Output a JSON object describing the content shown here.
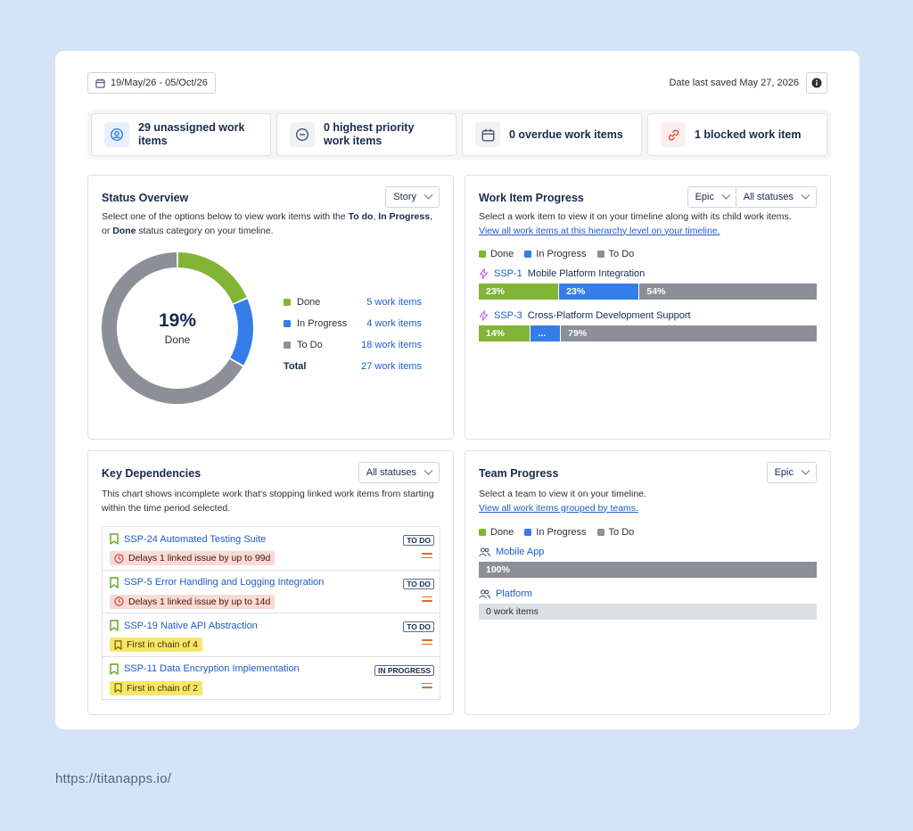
{
  "header": {
    "date_range": "19/May/26 - 05/Oct/26",
    "saved_text": "Date last saved May 27, 2026"
  },
  "stats": [
    {
      "label": "29 unassigned work items",
      "icon": "user-circle-icon"
    },
    {
      "label": "0 highest priority work items",
      "icon": "minus-circle-icon"
    },
    {
      "label": "0 overdue work items",
      "icon": "calendar-icon"
    },
    {
      "label": "1 blocked work item",
      "icon": "link-icon"
    }
  ],
  "colors": {
    "done": "#82b536",
    "in_progress": "#357de8",
    "todo": "#8c8f97",
    "link": "#1d5cc9"
  },
  "status_overview": {
    "title": "Status Overview",
    "dropdown": "Story",
    "desc_1": "Select one of the options below to view work items with the ",
    "desc_todo": "To do",
    "desc_2": ", ",
    "desc_inprog": "In Progress",
    "desc_3": ", or ",
    "desc_done": "Done",
    "desc_4": " status category on your timeline.",
    "center_pct": "19%",
    "center_label": "Done",
    "rows": [
      {
        "label": "Done",
        "value": "5 work items",
        "count": 5
      },
      {
        "label": "In Progress",
        "value": "4 work items",
        "count": 4
      },
      {
        "label": "To Do",
        "value": "18 work items",
        "count": 18
      }
    ],
    "total_label": "Total",
    "total_value": "27 work items"
  },
  "work_item_progress": {
    "title": "Work Item Progress",
    "dropdown1": "Epic",
    "dropdown2": "All statuses",
    "desc": "Select a work item to view it on your timeline along with its child work items.",
    "link": "View all work items at this hierarchy level on your timeline.",
    "legend": [
      "Done",
      "In Progress",
      "To Do"
    ],
    "epics": [
      {
        "key": "SSP-1",
        "name": "Mobile Platform Integration",
        "done": "23%",
        "inprog": "23%",
        "todo": "54%",
        "done_pct": 23,
        "inprog_pct": 23,
        "todo_pct": 54
      },
      {
        "key": "SSP-3",
        "name": "Cross-Platform Development Support",
        "done": "14%",
        "inprog": "...",
        "todo": "79%",
        "done_pct": 14,
        "inprog_pct": 7,
        "todo_pct": 79
      }
    ]
  },
  "key_dependencies": {
    "title": "Key Dependencies",
    "dropdown": "All statuses",
    "desc": "This chart shows incomplete work that's stopping linked work items from starting within the time period selected.",
    "items": [
      {
        "title": "SSP-24 Automated Testing Suite",
        "status": "TO DO",
        "badge": "Delays 1 linked issue by up to 99d"
      },
      {
        "title": "SSP-5 Error Handling and Logging Integration",
        "status": "TO DO",
        "badge": "Delays 1 linked issue by up to 14d"
      },
      {
        "title": "SSP-19 Native API Abstraction",
        "status": "TO DO",
        "badge": "First in chain of 4"
      },
      {
        "title": "SSP-11 Data Encryption Implementation",
        "status": "IN PROGRESS",
        "badge": "First in chain of 2"
      }
    ]
  },
  "team_progress": {
    "title": "Team Progress",
    "dropdown": "Epic",
    "desc": "Select a team to view it on your timeline.",
    "link": "View all work items grouped by teams.",
    "legend": [
      "Done",
      "In Progress",
      "To Do"
    ],
    "teams": [
      {
        "name": "Mobile App",
        "bar": "100%"
      },
      {
        "name": "Platform",
        "bar": "0 work items"
      }
    ]
  },
  "footer": {
    "url": "https://titanapps.io/"
  }
}
